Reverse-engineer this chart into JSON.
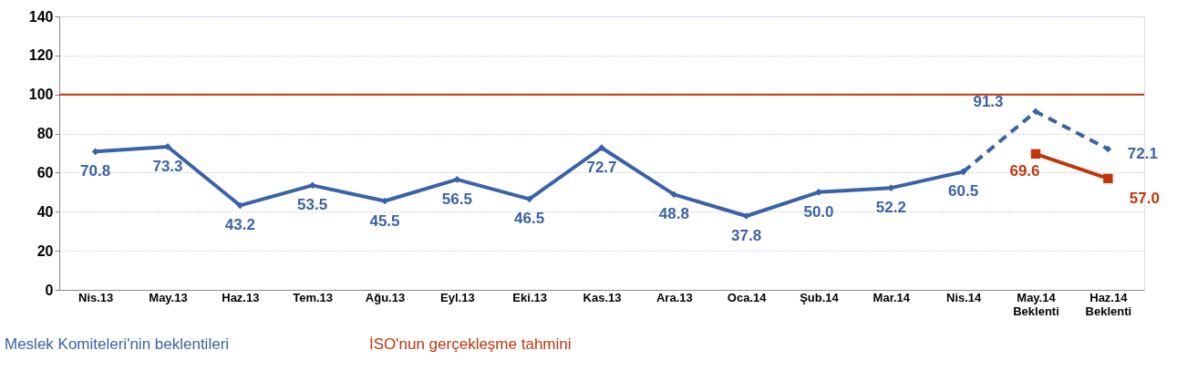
{
  "chart_data": {
    "type": "line",
    "categories": [
      "Nis.13",
      "May.13",
      "Haz.13",
      "Tem.13",
      "Ağu.13",
      "Eyl.13",
      "Eki.13",
      "Kas.13",
      "Ara.13",
      "Oca.14",
      "Şub.14",
      "Mar.14",
      "Nis.14",
      "May.14 Beklenti",
      "Haz.14 Beklenti"
    ],
    "series": [
      {
        "name": "Meslek Komiteleri'nin beklentileri",
        "color": "#3a62a8",
        "marker": "diamond",
        "line_style": "solid",
        "values": [
          70.8,
          73.3,
          43.2,
          53.5,
          45.5,
          56.5,
          46.5,
          72.7,
          48.8,
          37.8,
          50.0,
          52.2,
          60.5,
          null,
          null
        ],
        "value_labels": [
          "70.8",
          "73.3",
          "43.2",
          "53.5",
          "45.5",
          "56.5",
          "46.5",
          "72.7",
          "48.8",
          "37.8",
          "50.0",
          "52.2",
          "60.5",
          null,
          null
        ]
      },
      {
        "color": "#3a62a8",
        "marker": "diamond",
        "line_style": "dashed",
        "values": [
          null,
          null,
          null,
          null,
          null,
          null,
          null,
          null,
          null,
          null,
          null,
          null,
          60.5,
          91.3,
          72.1
        ],
        "value_labels": [
          null,
          null,
          null,
          null,
          null,
          null,
          null,
          null,
          null,
          null,
          null,
          null,
          null,
          "91.3",
          "72.1"
        ]
      },
      {
        "name": "İSO'nun gerçekleşme tahmini",
        "color": "#c0360c",
        "marker": "square",
        "line_style": "solid",
        "values": [
          null,
          null,
          null,
          null,
          null,
          null,
          null,
          null,
          null,
          null,
          null,
          null,
          null,
          69.6,
          57.0
        ],
        "value_labels": [
          null,
          null,
          null,
          null,
          null,
          null,
          null,
          null,
          null,
          null,
          null,
          null,
          null,
          "69.6",
          "57.0"
        ]
      }
    ],
    "ylim": [
      0,
      140
    ],
    "yticks": [
      0,
      20,
      40,
      60,
      80,
      100,
      120,
      140
    ],
    "ref_lines": [
      {
        "axis": "y",
        "value": 100,
        "color": "#c0360c"
      }
    ],
    "grid": "y",
    "legend": "bottom"
  }
}
